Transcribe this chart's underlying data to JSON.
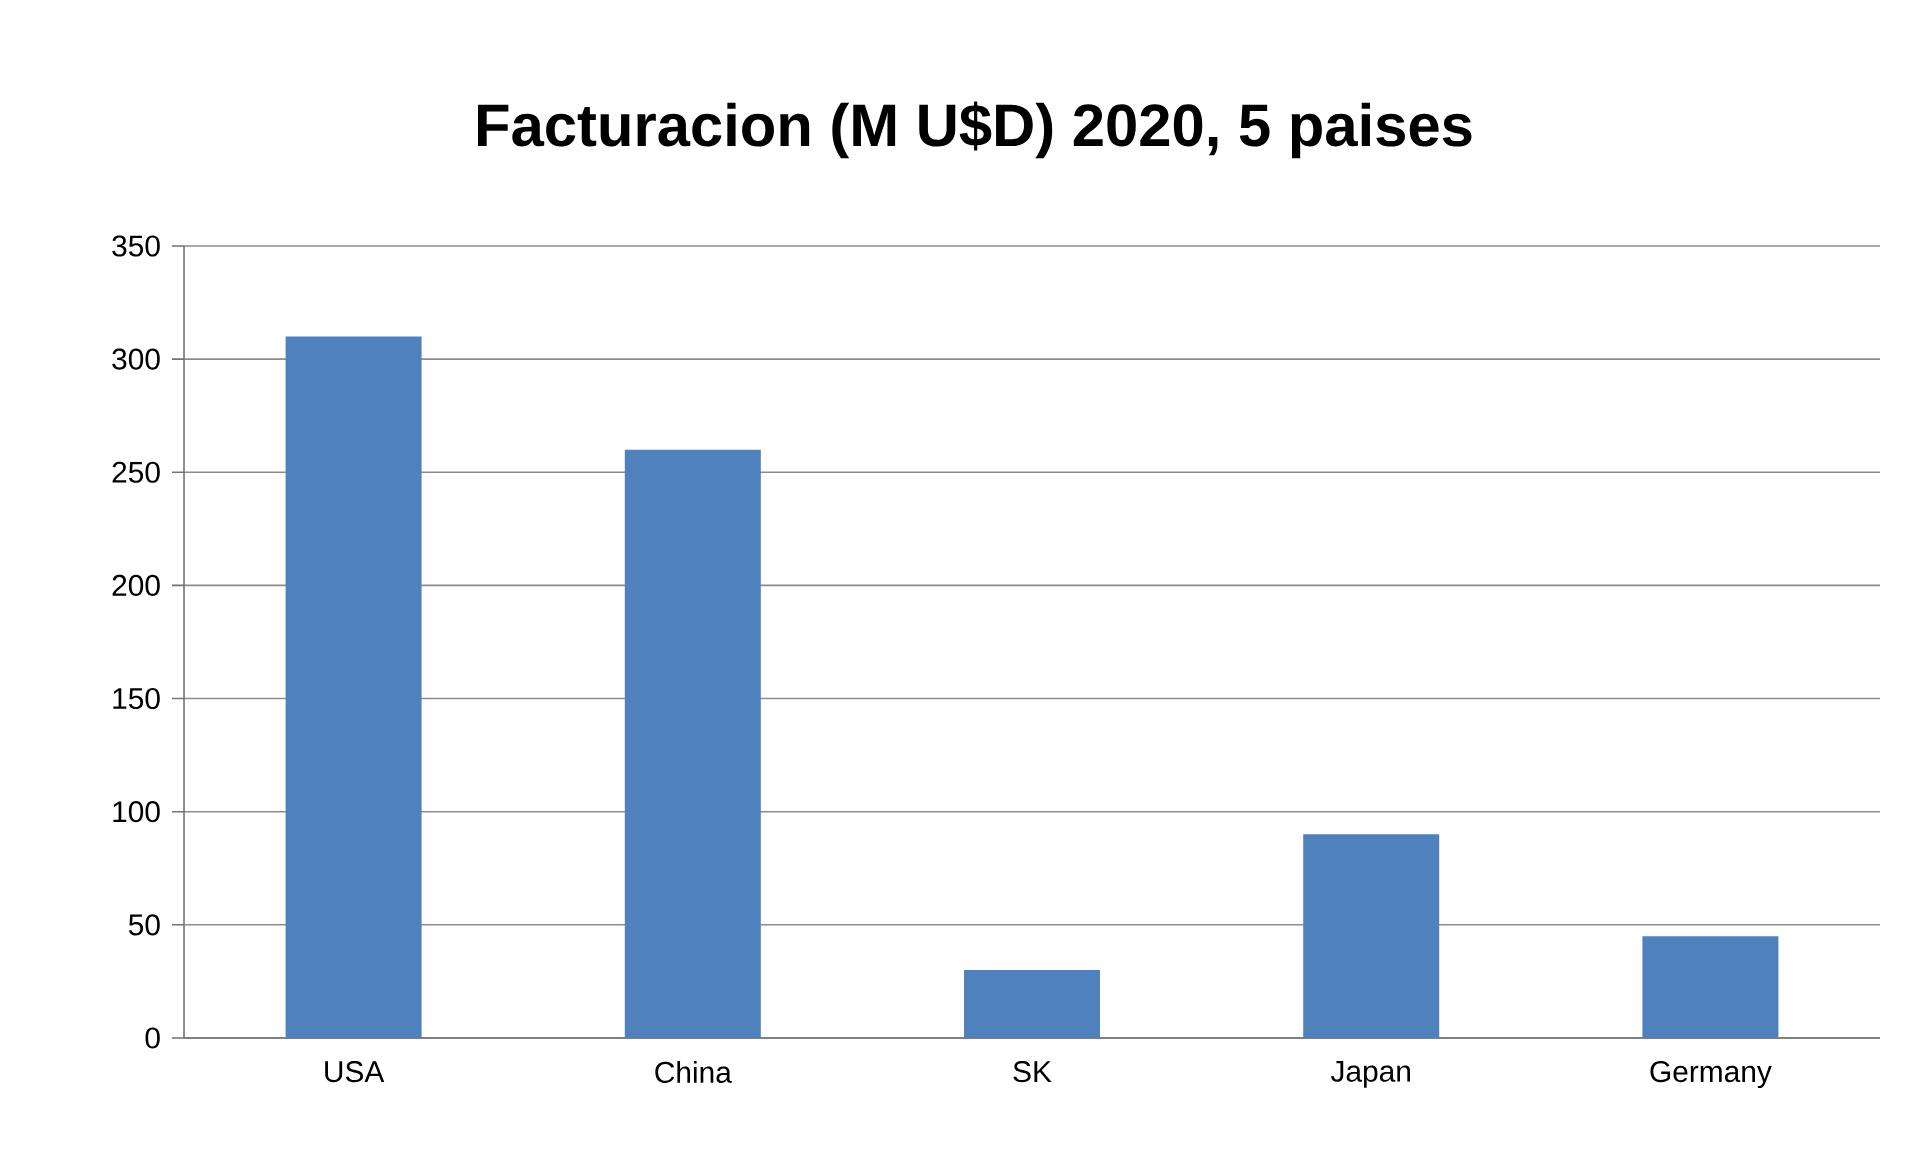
{
  "chart_data": {
    "type": "bar",
    "title": "Facturacion (M U$D) 2020, 5 paises",
    "categories": [
      "USA",
      "China",
      "SK",
      "Japan",
      "Germany"
    ],
    "values": [
      310,
      260,
      30,
      90,
      45
    ],
    "color": "#4f81bd",
    "ylim": [
      0,
      350
    ],
    "yticks": [
      0,
      50,
      100,
      150,
      200,
      250,
      300,
      350
    ],
    "grid": "y"
  }
}
